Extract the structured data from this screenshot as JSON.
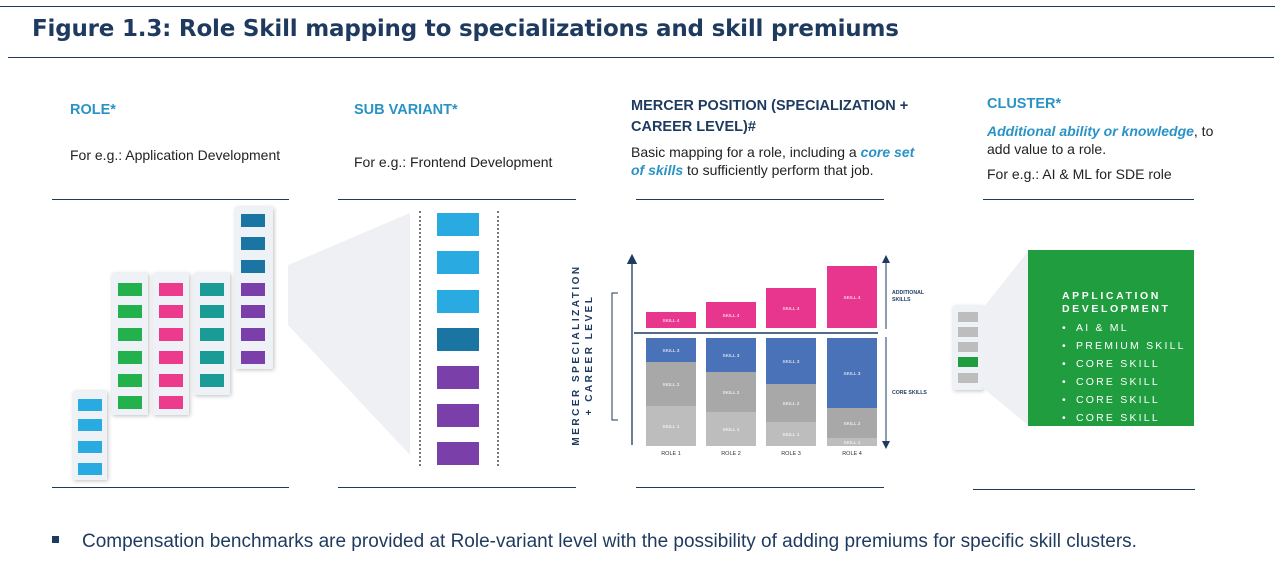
{
  "title": "Figure 1.3: Role Skill mapping to specializations and skill premiums",
  "columns": {
    "role": {
      "heading": "ROLE*",
      "example": "For e.g.: Application Development"
    },
    "sub_variant": {
      "heading": "SUB VARIANT*",
      "example": "For e.g.: Frontend Development"
    },
    "mercer": {
      "heading_line1": "MERCER POSITION (SPECIALIZATION +",
      "heading_line2": "CAREER LEVEL)#",
      "desc_part1": "Basic mapping for a role, including a ",
      "desc_highlight1": "core set",
      "desc_highlight2": "of skills",
      "desc_part2": " to sufficiently perform that job."
    },
    "cluster": {
      "heading": "CLUSTER*",
      "desc_highlight": "Additional ability or knowledge",
      "desc_part1": ", to",
      "desc_part2": "add value to a role.",
      "example": "For e.g.: AI & ML for SDE role"
    }
  },
  "chart_data": {
    "type": "bar",
    "stacked": true,
    "categories": [
      "ROLE 1",
      "ROLE 2",
      "ROLE 3",
      "ROLE 4"
    ],
    "y_axis_label_line1": "MERCER SPECIALIZATION",
    "y_axis_label_line2": "+ CAREER LEVEL",
    "core_label": "CORE SKILLS",
    "additional_label_line1": "ADDITIONAL",
    "additional_label_line2": "SKILLS",
    "premium_skill_label": "SKILL 4",
    "premium_heights": [
      16,
      26,
      40,
      62
    ],
    "core_stacks": [
      [
        {
          "label": "SKILL 1",
          "h": 40,
          "c": "#bdbdbd"
        },
        {
          "label": "SKILL 2",
          "h": 44,
          "c": "#a8a8a8"
        },
        {
          "label": "SKILL 3",
          "h": 24,
          "c": "#4a72b8"
        }
      ],
      [
        {
          "label": "SKILL 1",
          "h": 34,
          "c": "#bdbdbd"
        },
        {
          "label": "SKILL 2",
          "h": 40,
          "c": "#a8a8a8"
        },
        {
          "label": "SKILL 3",
          "h": 34,
          "c": "#4a72b8"
        }
      ],
      [
        {
          "label": "SKILL 1",
          "h": 24,
          "c": "#bdbdbd"
        },
        {
          "label": "SKILL 2",
          "h": 38,
          "c": "#a8a8a8"
        },
        {
          "label": "SKILL 3",
          "h": 46,
          "c": "#4a72b8"
        }
      ],
      [
        {
          "label": "SKILL 1",
          "h": 8,
          "c": "#bdbdbd"
        },
        {
          "label": "SKILL 2",
          "h": 30,
          "c": "#a8a8a8"
        },
        {
          "label": "SKILL 3",
          "h": 70,
          "c": "#4a72b8"
        }
      ]
    ],
    "colors": {
      "premium": "#e8368f",
      "core_light": "#bdbdbd",
      "core_mid": "#a8a8a8",
      "core_blue": "#4a72b8"
    }
  },
  "cluster_box": {
    "title_line1": "APPLICATION",
    "title_line2": "DEVELOPMENT",
    "items": [
      "AI & ML",
      "PREMIUM SKILL",
      "CORE SKILL",
      "CORE SKILL",
      "CORE SKILL",
      "CORE SKILL"
    ],
    "color": "#1f9d3f"
  },
  "bullet": "Compensation benchmarks are provided at Role-variant level with the possibility of adding premiums for specific skill clusters."
}
